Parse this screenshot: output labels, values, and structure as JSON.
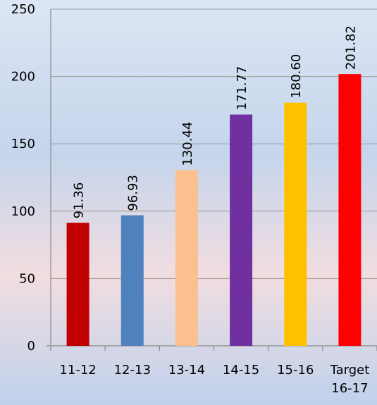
{
  "chart_data": {
    "type": "bar",
    "categories": [
      "11-12",
      "12-13",
      "13-14",
      "14-15",
      "15-16",
      "Target 16-17"
    ],
    "values": [
      91.36,
      96.93,
      130.44,
      171.77,
      180.6,
      201.82
    ],
    "value_labels": [
      "91.36",
      "96.93",
      "130.44",
      "171.77",
      "180.60",
      "201.82"
    ],
    "colors": [
      "#c00000",
      "#4f81bd",
      "#fac090",
      "#7030a0",
      "#ffc000",
      "#ff0000"
    ],
    "ylim": [
      0,
      250
    ],
    "yticks": [
      0,
      50,
      100,
      150,
      200,
      250
    ],
    "grid": true
  }
}
